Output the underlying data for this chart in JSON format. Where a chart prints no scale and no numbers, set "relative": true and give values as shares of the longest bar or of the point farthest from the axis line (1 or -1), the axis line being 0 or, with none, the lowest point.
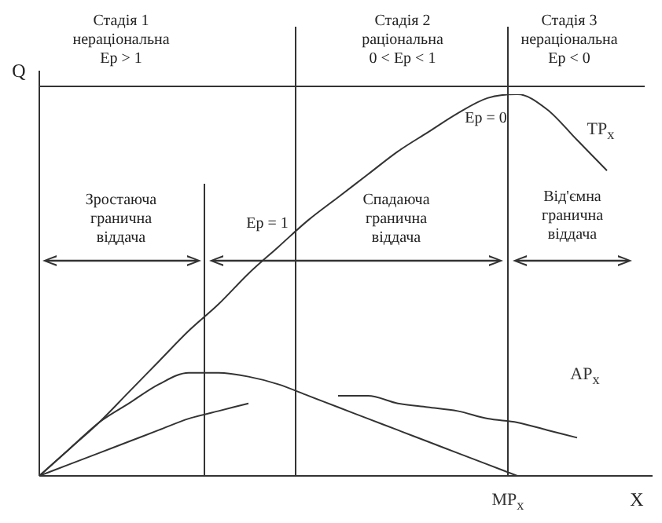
{
  "chart_data": {
    "type": "line",
    "relative": true,
    "xlabel": "X",
    "ylabel": "Q",
    "categories": [
      null,
      null,
      null,
      null,
      null,
      null,
      null,
      null,
      null,
      null,
      null,
      null,
      null,
      null,
      null,
      null,
      null,
      null,
      null,
      null,
      null
    ],
    "series": [
      {
        "name": "TP$_{x}$",
        "color": "#333333",
        "values": [
          0,
          0.07,
          0.14,
          0.22,
          0.3,
          0.38,
          0.45,
          0.53,
          0.6,
          0.67,
          0.73,
          0.79,
          0.85,
          0.9,
          0.95,
          0.99,
          1,
          0.96,
          0.88,
          0.8,
          null
        ]
      },
      {
        "name": "AP$_{x}$",
        "color": "#333333",
        "values": [
          0,
          0.03,
          0.06,
          0.09,
          0.12,
          0.15,
          0.17,
          0.19,
          null,
          null,
          0.21,
          0.21,
          0.19,
          0.18,
          0.17,
          0.15,
          0.14,
          0.12,
          0.1,
          null,
          null
        ]
      },
      {
        "name": "MP$_{x}$",
        "color": "#333333",
        "values": [
          0,
          0.07,
          0.14,
          0.19,
          0.24,
          0.27,
          0.27,
          0.26,
          0.24,
          0.21,
          0.18,
          0.15,
          0.12,
          0.09,
          0.06,
          0.03,
          0,
          null,
          null,
          null,
          null
        ]
      }
    ],
    "annotations": [
      "Стадія 1\nнераціональна\nEp > 1",
      "Стадія 2\nраціональна\n0 < Ep < 1",
      "Стадія 3\nнераціональна\nEp < 0",
      "Ep = 0",
      "Ep = 1",
      "Зростаюча\nгранична\nвіддача",
      "Спадаюча\nгранична\nвіддача",
      "Від'ємна\nгранична\nвіддача"
    ]
  }
}
